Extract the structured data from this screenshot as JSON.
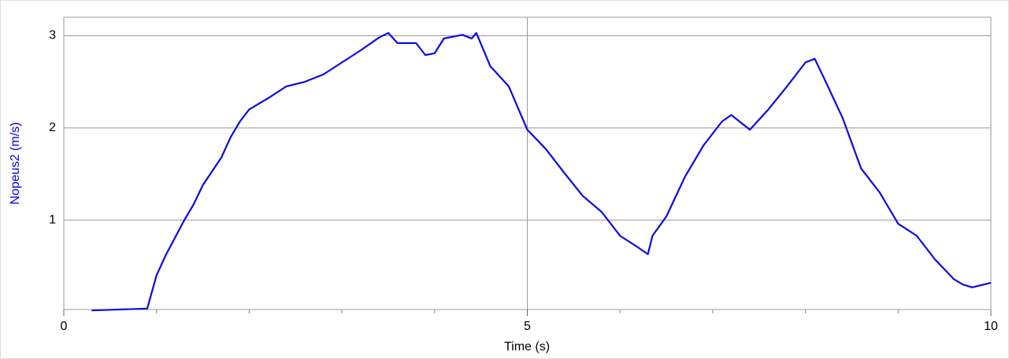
{
  "chart_data": {
    "type": "line",
    "xlabel": "Time (s)",
    "ylabel": "Nopeus2 (m/s)",
    "ylabel_color": "#0000ee",
    "x": [
      0.3,
      0.9,
      1.0,
      1.1,
      1.2,
      1.3,
      1.4,
      1.5,
      1.6,
      1.7,
      1.8,
      1.9,
      2.0,
      2.2,
      2.4,
      2.6,
      2.8,
      3.0,
      3.2,
      3.4,
      3.5,
      3.6,
      3.8,
      3.9,
      4.0,
      4.1,
      4.3,
      4.4,
      4.45,
      4.6,
      4.8,
      5.0,
      5.2,
      5.4,
      5.6,
      5.8,
      6.0,
      6.2,
      6.3,
      6.35,
      6.5,
      6.7,
      6.9,
      7.1,
      7.2,
      7.4,
      7.6,
      7.8,
      8.0,
      8.1,
      8.2,
      8.4,
      8.6,
      8.8,
      9.0,
      9.2,
      9.4,
      9.6,
      9.7,
      9.8,
      10.0
    ],
    "series": [
      {
        "name": "Nopeus2",
        "color": "#0a0ae6",
        "values": [
          0.02,
          0.04,
          0.4,
          0.62,
          0.81,
          1.0,
          1.17,
          1.38,
          1.53,
          1.68,
          1.9,
          2.07,
          2.2,
          2.32,
          2.45,
          2.5,
          2.58,
          2.71,
          2.84,
          2.98,
          3.03,
          2.92,
          2.92,
          2.79,
          2.81,
          2.97,
          3.01,
          2.97,
          3.03,
          2.67,
          2.45,
          1.98,
          1.77,
          1.51,
          1.26,
          1.09,
          0.83,
          0.7,
          0.63,
          0.83,
          1.04,
          1.47,
          1.81,
          2.07,
          2.14,
          1.98,
          2.2,
          2.45,
          2.71,
          2.75,
          2.54,
          2.11,
          1.56,
          1.3,
          0.96,
          0.83,
          0.57,
          0.36,
          0.3,
          0.27,
          0.32
        ]
      }
    ],
    "xlim": [
      0,
      10
    ],
    "ylim": [
      0.03,
      3.2
    ],
    "xticks": [
      0,
      5,
      10
    ],
    "xminor": [
      1,
      2,
      3,
      4,
      6,
      7,
      8,
      9
    ],
    "yticks": [
      1,
      2,
      3
    ],
    "grid": true
  }
}
